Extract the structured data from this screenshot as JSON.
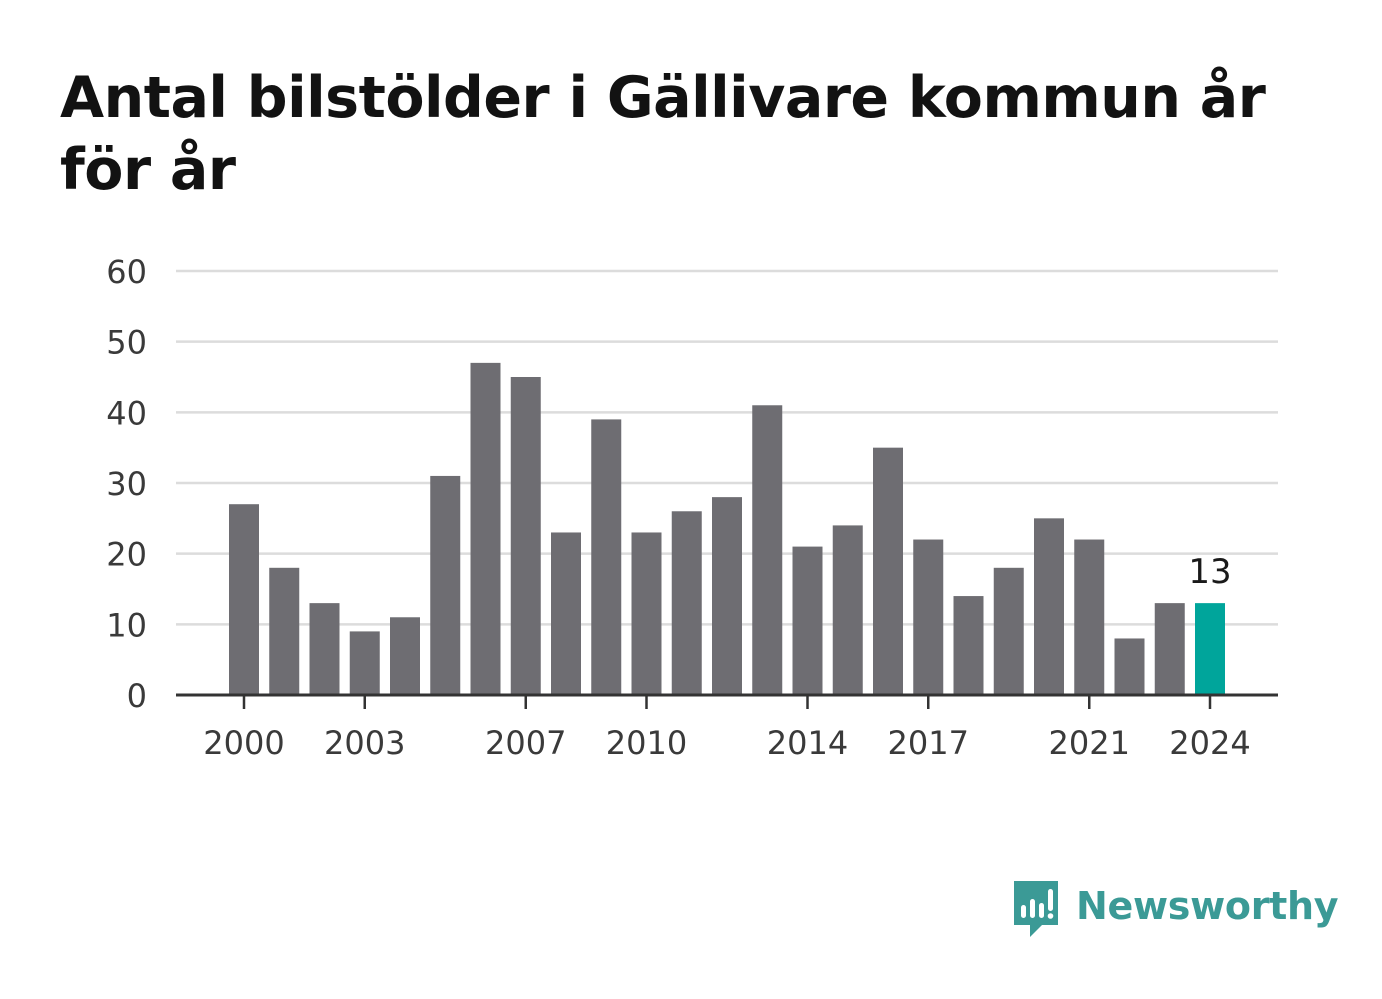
{
  "chart_data": {
    "type": "bar",
    "title": "Antal bilstölder i Gällivare kommun år för år",
    "categories": [
      "2000",
      "2001",
      "2002",
      "2003",
      "2004",
      "2005",
      "2006",
      "2007",
      "2008",
      "2009",
      "2010",
      "2011",
      "2012",
      "2013",
      "2014",
      "2015",
      "2016",
      "2017",
      "2018",
      "2019",
      "2020",
      "2021",
      "2022",
      "2023",
      "2024"
    ],
    "values": [
      27,
      18,
      13,
      9,
      11,
      31,
      47,
      45,
      23,
      39,
      23,
      26,
      28,
      41,
      21,
      24,
      35,
      22,
      14,
      18,
      25,
      22,
      8,
      13,
      13
    ],
    "xtick_labels": [
      "2000",
      "2003",
      "2007",
      "2010",
      "2014",
      "2017",
      "2021",
      "2024"
    ],
    "yticks": [
      0,
      10,
      20,
      30,
      40,
      50,
      60
    ],
    "ylim": [
      0,
      60
    ],
    "xlabel": "",
    "ylabel": "",
    "grid": true,
    "highlight": {
      "category": "2024",
      "label": "13"
    },
    "colors": {
      "bar": "#6e6d72",
      "highlight": "#00a59b",
      "grid": "#dcdcdc",
      "axis": "#333333",
      "tick_text": "#3a3a3a"
    }
  },
  "brand": {
    "name": "Newsworthy",
    "icon": "newsworthy-logo-icon",
    "color": "#3b9a96"
  }
}
